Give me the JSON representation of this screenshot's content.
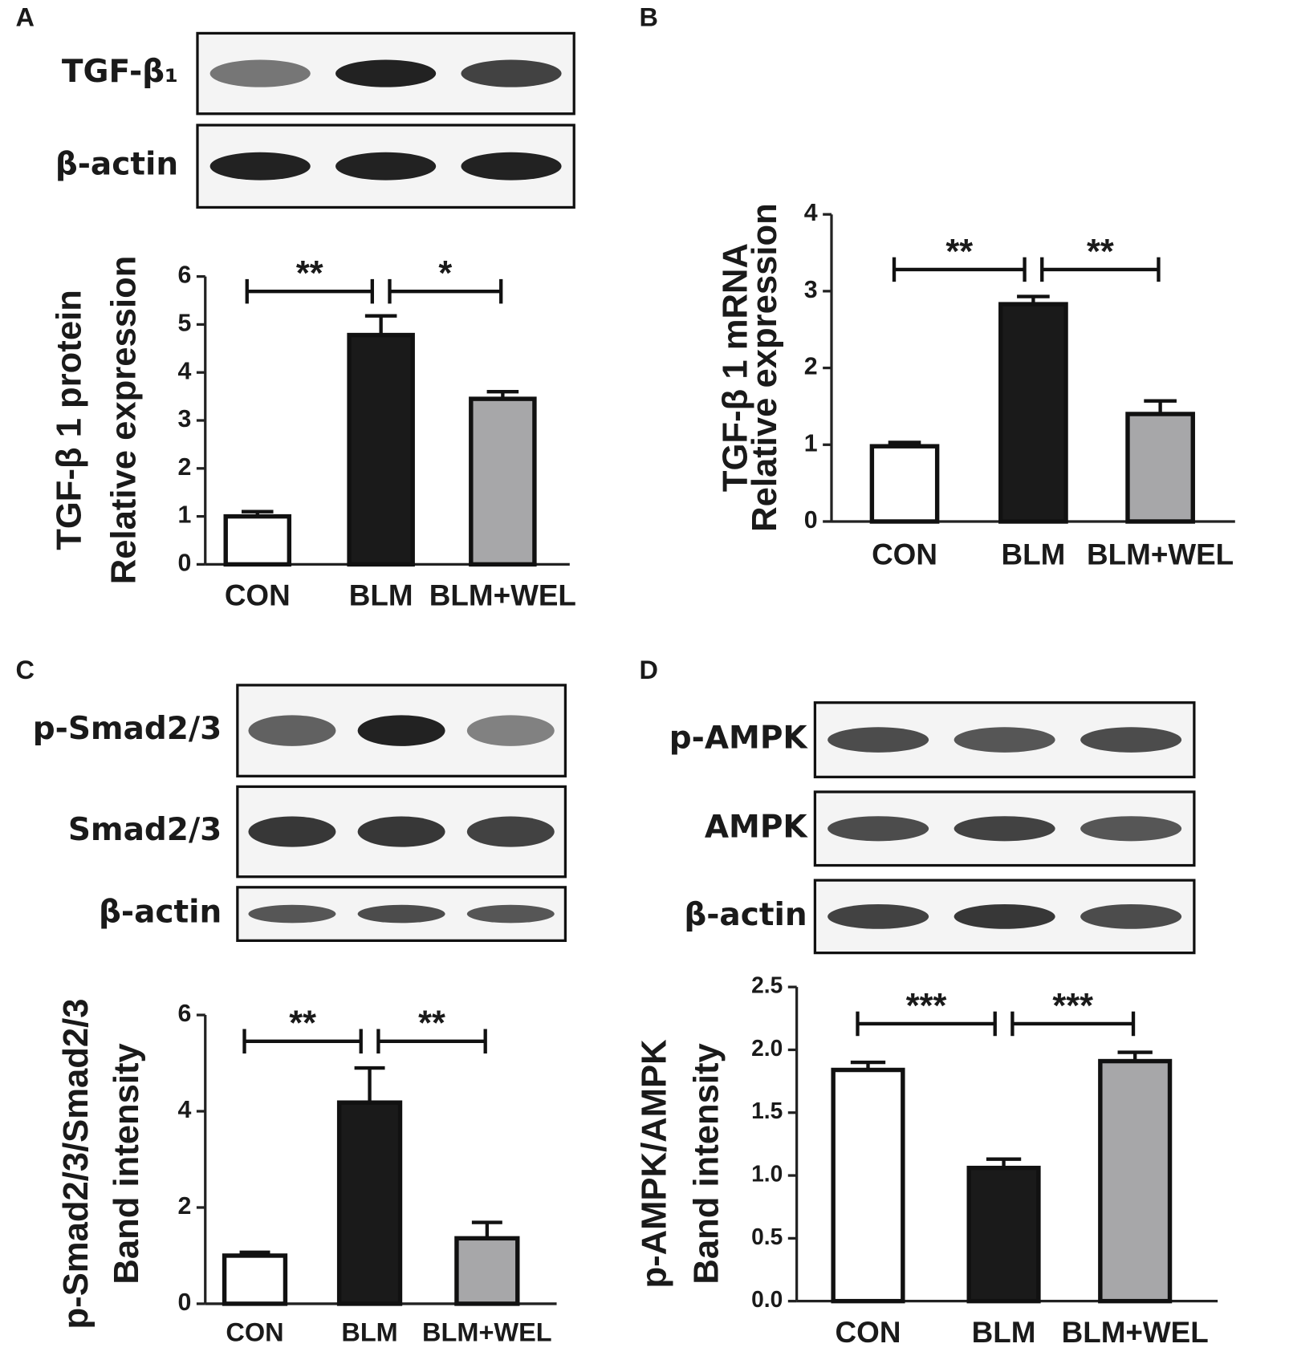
{
  "chart_data": [
    {
      "type": "bar",
      "panel": "A",
      "blots": [
        "TGF-β₁",
        "β-actin"
      ],
      "ylabel": [
        "TGF-β 1 protein",
        "Relative expression"
      ],
      "categories": [
        "CON",
        "BLM",
        "BLM+WEL"
      ],
      "values": [
        1.0,
        4.78,
        3.45
      ],
      "errors": [
        0.1,
        0.4,
        0.15
      ],
      "colors": [
        "#ffffff",
        "#1a1a1a",
        "#a7a7a9"
      ],
      "annotations": [
        "**",
        "*"
      ],
      "ylim": [
        0,
        6
      ],
      "yticks": [
        0,
        1,
        2,
        3,
        4,
        5,
        6
      ]
    },
    {
      "type": "bar",
      "panel": "B",
      "blots": [],
      "ylabel": [
        "TGF-β 1 mRNA",
        "Relative expression"
      ],
      "categories": [
        "CON",
        "BLM",
        "BLM+WEL"
      ],
      "values": [
        0.98,
        2.83,
        1.4
      ],
      "errors": [
        0.05,
        0.1,
        0.17
      ],
      "colors": [
        "#ffffff",
        "#1a1a1a",
        "#a7a7a9"
      ],
      "annotations": [
        "**",
        "**"
      ],
      "ylim": [
        0,
        4
      ],
      "yticks": [
        0,
        1,
        2,
        3,
        4
      ]
    },
    {
      "type": "bar",
      "panel": "C",
      "blots": [
        "p-Smad2/3",
        "Smad2/3",
        "β-actin"
      ],
      "ylabel": [
        "p-Smad2/3/Smad2/3",
        "Band intensity"
      ],
      "categories": [
        "CON",
        "BLM",
        "BLM+WEL"
      ],
      "values": [
        1.0,
        4.18,
        1.36
      ],
      "errors": [
        0.07,
        0.72,
        0.33
      ],
      "colors": [
        "#ffffff",
        "#1a1a1a",
        "#a7a7a9"
      ],
      "annotations": [
        "**",
        "**"
      ],
      "ylim": [
        0,
        6
      ],
      "yticks": [
        0,
        2,
        4,
        6
      ]
    },
    {
      "type": "bar",
      "panel": "D",
      "blots": [
        "p-AMPK",
        "AMPK",
        "β-actin"
      ],
      "ylabel": [
        "p-AMPK/AMPK",
        "Band intensity"
      ],
      "categories": [
        "CON",
        "BLM",
        "BLM+WEL"
      ],
      "values": [
        1.84,
        1.06,
        1.91
      ],
      "errors": [
        0.06,
        0.07,
        0.07
      ],
      "colors": [
        "#ffffff",
        "#1a1a1a",
        "#a7a7a9"
      ],
      "annotations": [
        "***",
        "***"
      ],
      "ylim": [
        0,
        2.5
      ],
      "yticks": [
        {
          "value": 0,
          "label": "0.0"
        },
        {
          "value": 0.5,
          "label": "0.5"
        },
        {
          "value": 1,
          "label": "1.0"
        },
        {
          "value": 1.5,
          "label": "1.5"
        },
        {
          "value": 2,
          "label": "2.0"
        },
        {
          "value": 2.5,
          "label": "2.5"
        }
      ]
    }
  ]
}
